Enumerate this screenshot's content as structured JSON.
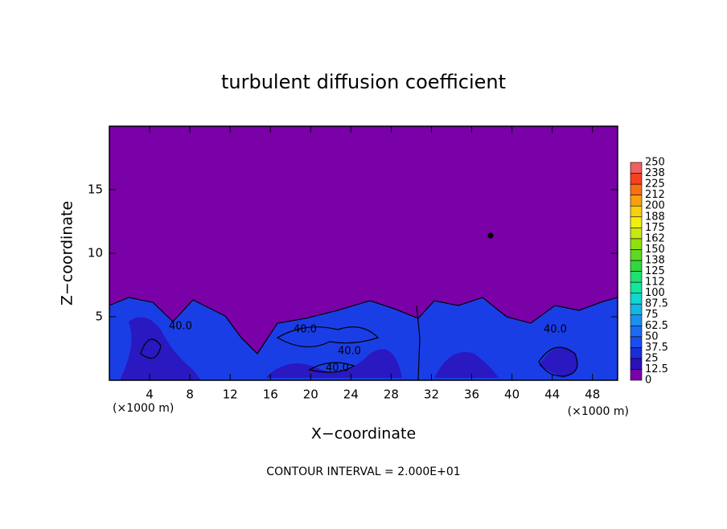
{
  "chart_data": {
    "type": "contour",
    "title": "turbulent diffusion coefficient",
    "x_label": "X−coordinate",
    "y_label": "Z−coordinate",
    "x_unit_left": "(×1000 m)",
    "x_unit_right": "(×1000 m)",
    "footnote": "CONTOUR INTERVAL = 2.000E+01",
    "xlim": [
      0,
      50.5
    ],
    "xticks": [
      4,
      8,
      12,
      16,
      20,
      24,
      28,
      32,
      36,
      40,
      44,
      48
    ],
    "ylim": [
      0,
      20
    ],
    "yticks": [
      5,
      10,
      15
    ],
    "contour_labels": [
      "40.0",
      "40.0",
      "40.0",
      "40.0",
      "40.0"
    ],
    "colorbar": {
      "levels": [
        0,
        12.5,
        25,
        37.5,
        50,
        62.5,
        75,
        87.5,
        100,
        112,
        125,
        138,
        150,
        162,
        175,
        188,
        200,
        212,
        225,
        238,
        250
      ],
      "colors": [
        "#7a00a8",
        "#2a10b8",
        "#1a2ed8",
        "#1a4cf0",
        "#1a6cf5",
        "#1a90f0",
        "#10b8e8",
        "#10d8d0",
        "#10e8a0",
        "#20e070",
        "#30d840",
        "#60d820",
        "#90e010",
        "#c8e810",
        "#f0f010",
        "#f8d010",
        "#f8a010",
        "#f87010",
        "#f84020",
        "#f06060"
      ]
    }
  }
}
